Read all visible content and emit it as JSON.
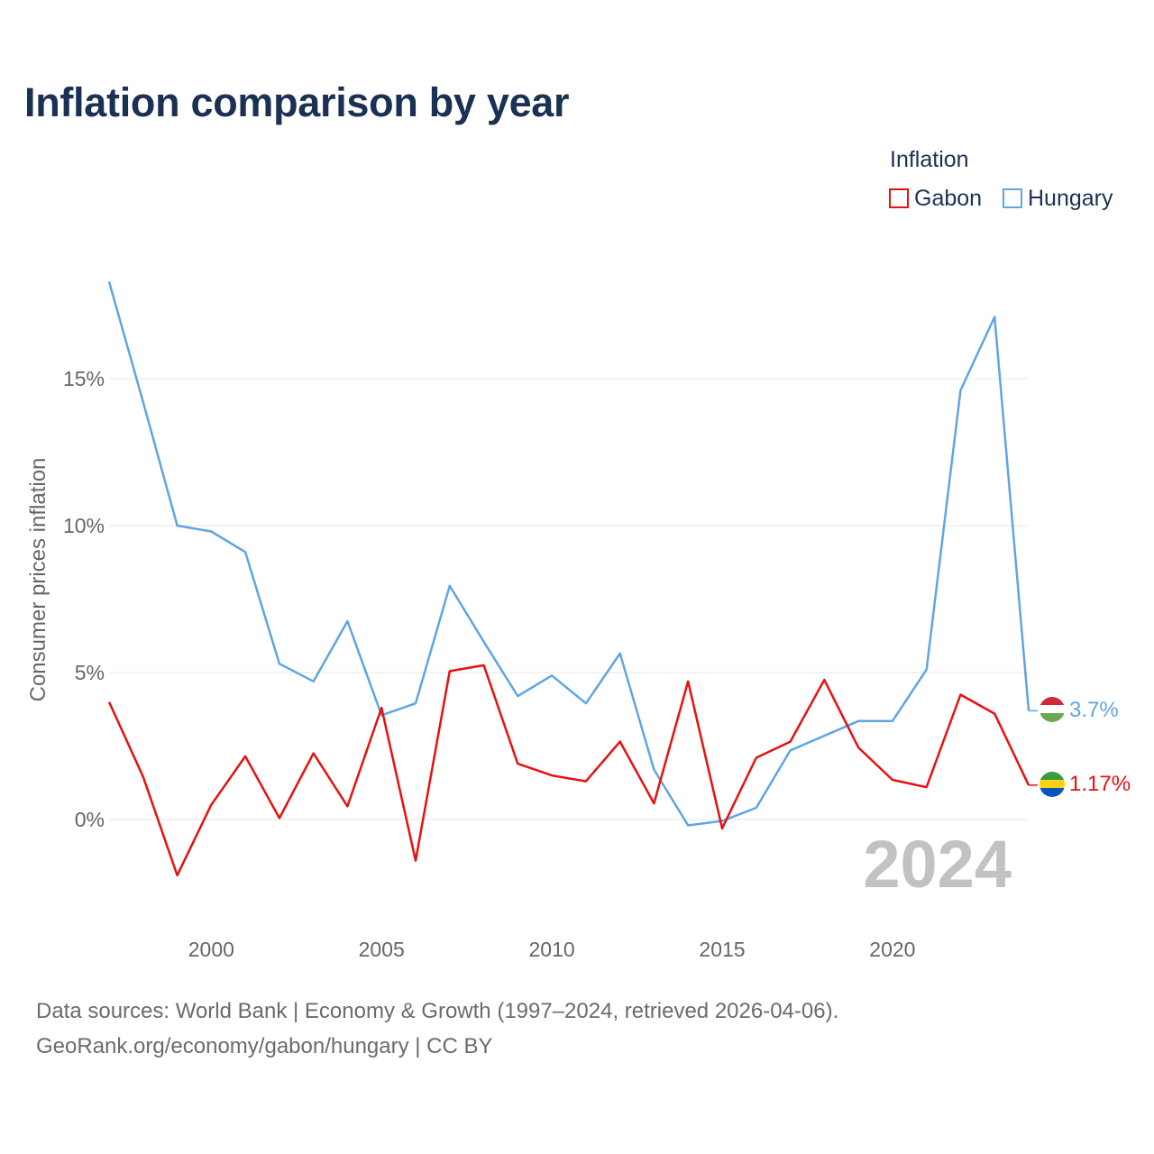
{
  "title": "Inflation comparison by year",
  "legend": {
    "title": "Inflation",
    "items": [
      {
        "name": "Gabon",
        "color": "#e8100f"
      },
      {
        "name": "Hungary",
        "color": "#5fa5e3"
      }
    ]
  },
  "chart_data": {
    "type": "line",
    "title": "Inflation comparison by year",
    "xlabel": "",
    "ylabel": "Consumer prices inflation",
    "xlim": [
      1997,
      2024
    ],
    "ylim": [
      -3.2,
      20
    ],
    "x_ticks": [
      {
        "value": 2000,
        "label": "2000"
      },
      {
        "value": 2005,
        "label": "2005"
      },
      {
        "value": 2010,
        "label": "2010"
      },
      {
        "value": 2015,
        "label": "2015"
      },
      {
        "value": 2020,
        "label": "2020"
      }
    ],
    "y_ticks": [
      {
        "value": 0,
        "label": "0%"
      },
      {
        "value": 5,
        "label": "5%"
      },
      {
        "value": 10,
        "label": "10%"
      },
      {
        "value": 15,
        "label": "15%"
      }
    ],
    "grid": true,
    "legend_position": "top-right",
    "year_label": "2024",
    "x": [
      1997,
      1998,
      1999,
      2000,
      2001,
      2002,
      2003,
      2004,
      2005,
      2006,
      2007,
      2008,
      2009,
      2010,
      2011,
      2012,
      2013,
      2014,
      2015,
      2016,
      2017,
      2018,
      2019,
      2020,
      2021,
      2022,
      2023,
      2024
    ],
    "series": [
      {
        "name": "Gabon",
        "color": "#e8100f",
        "end_label": "1.17%",
        "values": [
          4.0,
          1.45,
          -1.9,
          0.5,
          2.15,
          0.05,
          2.25,
          0.45,
          3.8,
          -1.4,
          5.05,
          5.25,
          1.9,
          1.5,
          1.3,
          2.65,
          0.55,
          4.7,
          -0.3,
          2.1,
          2.65,
          4.75,
          2.45,
          1.35,
          1.1,
          4.25,
          3.6,
          1.17
        ]
      },
      {
        "name": "Hungary",
        "color": "#5fa5e3",
        "end_label": "3.7%",
        "values": [
          18.3,
          14.2,
          10.0,
          9.8,
          9.1,
          5.3,
          4.7,
          6.75,
          3.55,
          3.95,
          7.95,
          6.05,
          4.2,
          4.9,
          3.95,
          5.65,
          1.7,
          -0.2,
          -0.05,
          0.4,
          2.35,
          2.85,
          3.35,
          3.35,
          5.1,
          14.6,
          17.1,
          3.7
        ]
      }
    ]
  },
  "footer": {
    "sources": "Data sources: World Bank | Economy & Growth (1997–2024, retrieved 2026-04-06).",
    "link": "GeoRank.org/economy/gabon/hungary | CC BY"
  }
}
